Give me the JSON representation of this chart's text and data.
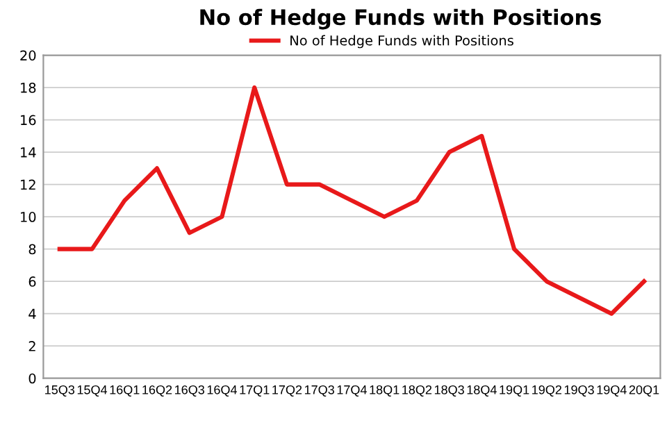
{
  "chart_data": {
    "type": "line",
    "title": "No of Hedge Funds with Positions",
    "categories": [
      "15Q3",
      "15Q4",
      "16Q1",
      "16Q2",
      "16Q3",
      "16Q4",
      "17Q1",
      "17Q2",
      "17Q3",
      "17Q4",
      "18Q1",
      "18Q2",
      "18Q3",
      "18Q4",
      "19Q1",
      "19Q2",
      "19Q3",
      "19Q4",
      "20Q1"
    ],
    "series": [
      {
        "name": "No of Hedge Funds with Positions",
        "color": "#e8191a",
        "values": [
          8,
          8,
          11,
          13,
          9,
          10,
          18,
          12,
          12,
          11,
          10,
          11,
          14,
          15,
          8,
          6,
          5,
          4,
          6
        ]
      }
    ],
    "ylim": [
      0,
      20
    ],
    "yticks": [
      0,
      2,
      4,
      6,
      8,
      10,
      12,
      14,
      16,
      18,
      20
    ],
    "grid": "y",
    "legend": "top",
    "marker": "none",
    "line_style": "solid"
  }
}
